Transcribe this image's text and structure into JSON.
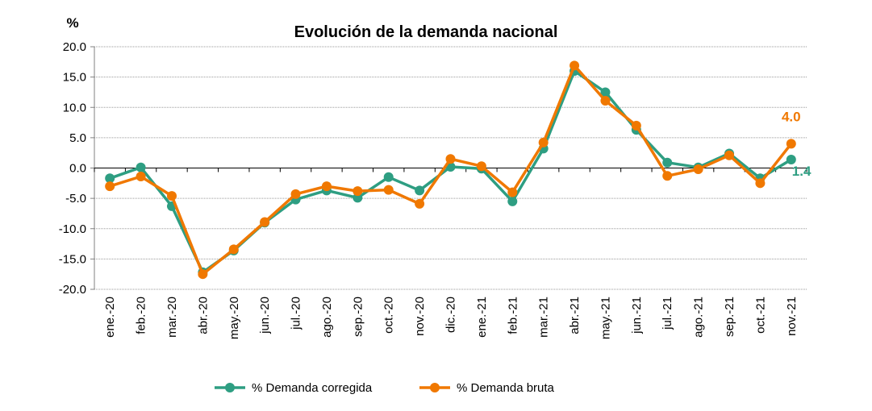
{
  "chart_data": {
    "type": "line",
    "title": "Evolución de la demanda nacional",
    "ylabel": "%",
    "xlabel": "",
    "ylim": [
      -20,
      20
    ],
    "yticks": [
      20,
      15,
      10,
      5,
      0,
      -5,
      -10,
      -15,
      -20
    ],
    "ytick_labels": [
      "20.0",
      "15.0",
      "10.0",
      "5.0",
      "0.0",
      "-5.0",
      "-10.0",
      "-15.0",
      "-20.0"
    ],
    "grid": true,
    "legend": "bottom",
    "categories": [
      "ene.-20",
      "feb.-20",
      "mar.-20",
      "abr.-20",
      "may.-20",
      "jun.-20",
      "jul.-20",
      "ago.-20",
      "sep.-20",
      "oct.-20",
      "nov.-20",
      "dic.-20",
      "ene.-21",
      "feb.-21",
      "mar.-21",
      "abr.-21",
      "may.-21",
      "jun.-21",
      "jul.-21",
      "ago.-21",
      "sep.-21",
      "oct.-21",
      "nov.-21"
    ],
    "series": [
      {
        "name": "% Demanda corregida",
        "color": "#2e9e82",
        "values": [
          -1.7,
          0.1,
          -6.3,
          -17.2,
          -13.6,
          -9.0,
          -5.2,
          -3.7,
          -4.9,
          -1.5,
          -3.7,
          0.2,
          -0.1,
          -5.5,
          3.2,
          16.0,
          12.5,
          6.3,
          0.9,
          0.1,
          2.4,
          -1.7,
          1.4
        ],
        "end_label": "1.4"
      },
      {
        "name": "% Demanda bruta",
        "color": "#f07800",
        "values": [
          -3.0,
          -1.4,
          -4.6,
          -17.5,
          -13.4,
          -8.9,
          -4.3,
          -3.0,
          -3.8,
          -3.6,
          -5.9,
          1.5,
          0.3,
          -4.0,
          4.2,
          16.9,
          11.1,
          7.0,
          -1.3,
          -0.2,
          2.1,
          -2.5,
          4.0
        ],
        "end_label": "4.0"
      }
    ]
  }
}
